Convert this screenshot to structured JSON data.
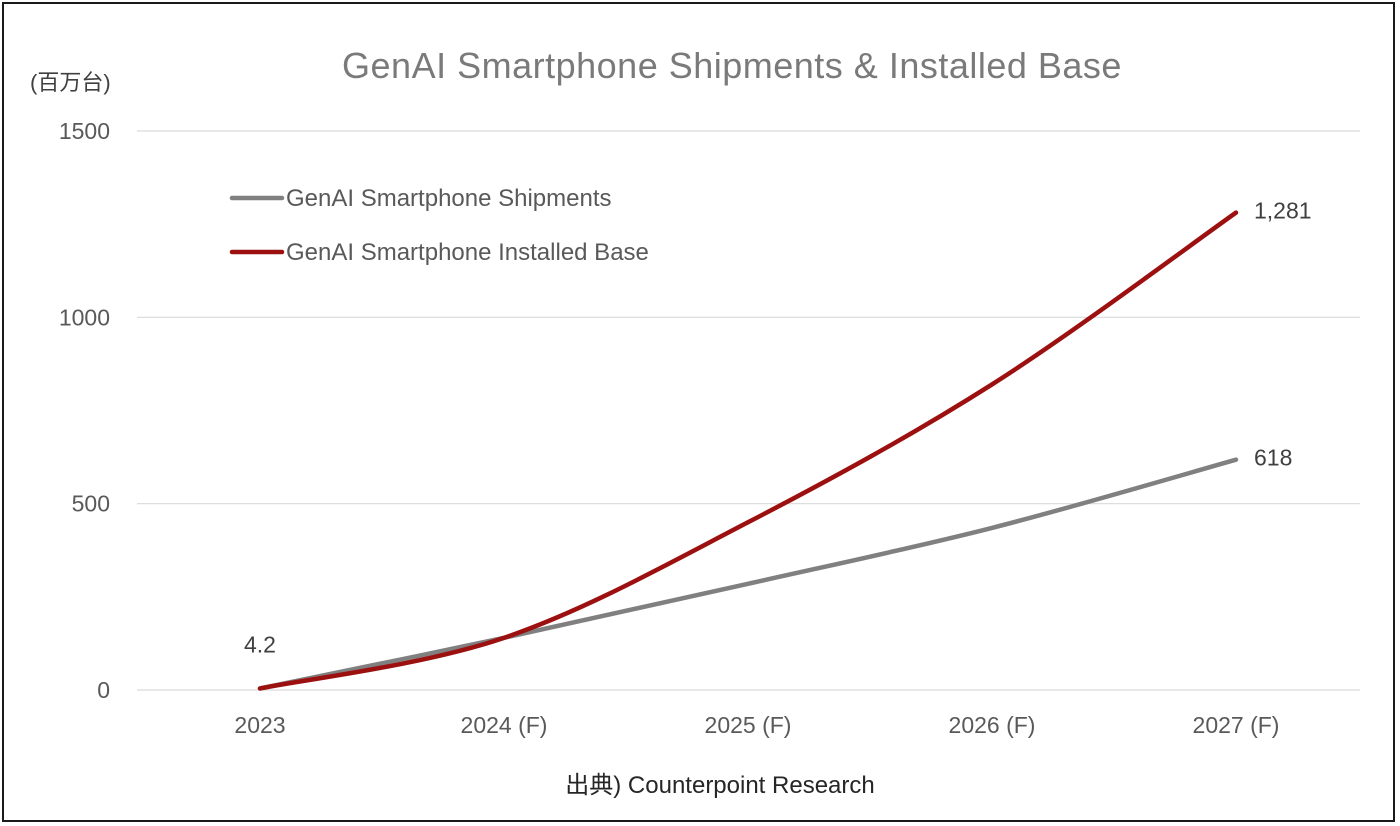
{
  "chart_data": {
    "type": "line",
    "title": "GenAI Smartphone Shipments & Installed Base",
    "ylabel": "(百万台)",
    "xlabel": "",
    "categories": [
      "2023",
      "2024 (F)",
      "2025 (F)",
      "2026 (F)",
      "2027 (F)"
    ],
    "ylim": [
      0,
      1500
    ],
    "yticks": [
      0,
      500,
      1000,
      1500
    ],
    "grid": true,
    "legend": "top-left",
    "series": [
      {
        "name": "GenAI Smartphone Shipments",
        "color": "#808080",
        "values": [
          4.2,
          140,
          285,
          435,
          618
        ]
      },
      {
        "name": "GenAI Smartphone Installed Base",
        "color": "#9c1010",
        "values": [
          4.2,
          140,
          450,
          820,
          1281
        ]
      }
    ],
    "data_labels": [
      {
        "series": 1,
        "index": 0,
        "text": "4.2"
      },
      {
        "series": 1,
        "index": 4,
        "text": "1,281"
      },
      {
        "series": 0,
        "index": 4,
        "text": "618"
      }
    ],
    "source": "出典) Counterpoint Research"
  }
}
